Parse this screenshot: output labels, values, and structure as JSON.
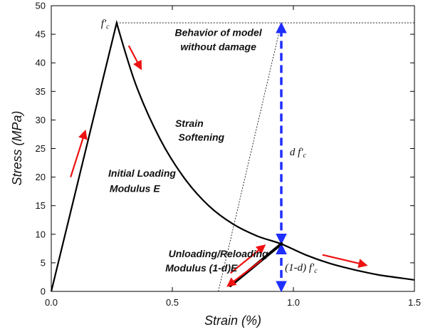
{
  "chart_data": {
    "type": "line",
    "title": "",
    "xlabel": "Strain (%)",
    "ylabel": "Stress (MPa)",
    "xlim": [
      0,
      1.5
    ],
    "ylim": [
      0,
      50
    ],
    "x_ticks": [
      0.0,
      0.5,
      1.0,
      1.5
    ],
    "x_tick_labels": [
      "0.0",
      "0.5",
      "1.0",
      "1.5"
    ],
    "y_ticks": [
      0,
      5,
      10,
      15,
      20,
      25,
      30,
      35,
      40,
      45,
      50
    ],
    "y_tick_labels": [
      "0",
      "5",
      "10",
      "15",
      "20",
      "25",
      "30",
      "35",
      "40",
      "45",
      "50"
    ],
    "grid": false,
    "series": [
      {
        "style": "solid-black",
        "x": [
          0.0,
          0.27,
          0.35,
          0.45,
          0.55,
          0.65,
          0.75,
          0.85,
          0.95,
          1.05,
          1.15,
          1.25,
          1.35,
          1.45,
          1.5
        ],
        "y": [
          0,
          47,
          36.1,
          26.6,
          19.8,
          15.0,
          11.8,
          9.7,
          8.3,
          6.4,
          4.9,
          3.8,
          2.9,
          2.3,
          2.0
        ]
      },
      {
        "style": "thick-black",
        "x": [
          0.74,
          0.95
        ],
        "y": [
          1,
          8.3
        ]
      },
      {
        "style": "dotted-black",
        "x": [
          0.27,
          1.5
        ],
        "y": [
          47,
          47
        ]
      },
      {
        "style": "dotted-black",
        "x": [
          0.69,
          0.95
        ],
        "y": [
          0,
          47
        ]
      }
    ],
    "dimension_arrows": [
      {
        "x": 0.95,
        "y_from": 8.3,
        "y_to": 47,
        "color": "#1f2fff",
        "label": "d f'c"
      },
      {
        "x": 0.95,
        "y_from": 0,
        "y_to": 8.3,
        "color": "#1f2fff",
        "label": "(1-d) f'c"
      }
    ],
    "direction_arrows": [
      {
        "from": [
          0.08,
          20
        ],
        "to": [
          0.14,
          28
        ],
        "color": "#e11"
      },
      {
        "from": [
          0.32,
          43
        ],
        "to": [
          0.37,
          39
        ],
        "color": "#e11"
      },
      {
        "from": [
          1.12,
          6.4
        ],
        "to": [
          1.3,
          4.6
        ],
        "color": "#e11"
      },
      {
        "from": [
          0.74,
          3.2
        ],
        "to": [
          0.88,
          8.0
        ],
        "color": "#e11"
      },
      {
        "from": [
          0.87,
          5.5
        ],
        "to": [
          0.73,
          1.0
        ],
        "color": "#e11"
      }
    ],
    "annotations": [
      {
        "text": "Behavior of model",
        "x": 0.69,
        "y": 44.7
      },
      {
        "text": "without damage",
        "x": 0.69,
        "y": 42.2
      },
      {
        "text": "Strain",
        "x": 0.57,
        "y": 28.8
      },
      {
        "text": "Softening",
        "x": 0.62,
        "y": 26.4
      },
      {
        "text": "Initial Loading",
        "x": 0.375,
        "y": 20.1
      },
      {
        "text": "Modulus E",
        "x": 0.345,
        "y": 17.4
      },
      {
        "text": "Unloading/Reloading",
        "x": 0.69,
        "y": 6.0
      },
      {
        "text": "Modulus (1-d)E",
        "x": 0.62,
        "y": 3.5
      }
    ],
    "math_labels": [
      {
        "main": "f'",
        "sub": "c",
        "x": 0.205,
        "y": 46.3
      },
      {
        "main": "d f'",
        "sub": "c",
        "x": 0.985,
        "y": 23.8
      },
      {
        "main": "(1-d) f'",
        "sub": "c",
        "x": 0.965,
        "y": 3.6
      }
    ]
  }
}
